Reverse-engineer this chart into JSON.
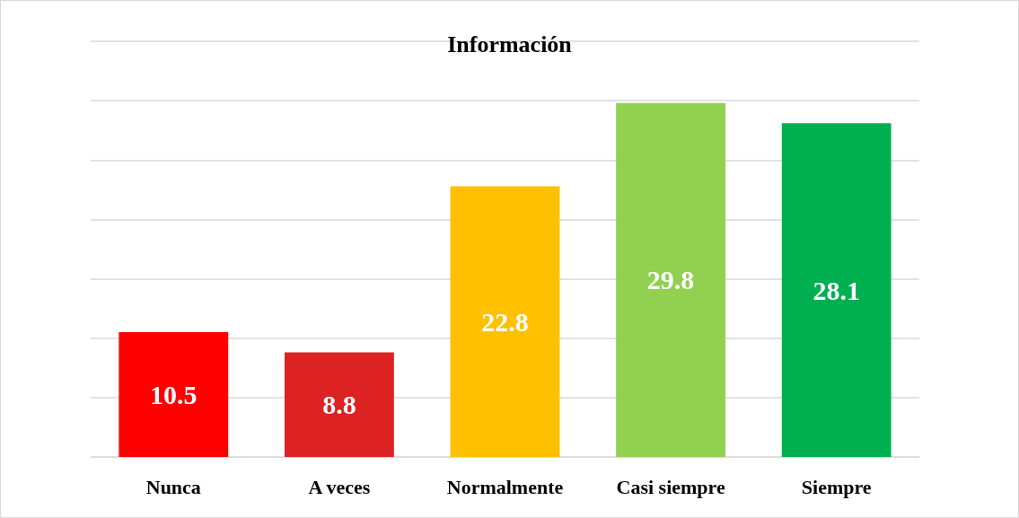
{
  "chart_data": {
    "type": "bar",
    "title": "Información",
    "categories": [
      "Nunca",
      "A veces",
      "Normalmente",
      "Casi siempre",
      "Siempre"
    ],
    "values": [
      10.5,
      8.8,
      22.8,
      29.8,
      28.1
    ],
    "colors": [
      "#ff0000",
      "#dc2222",
      "#ffc000",
      "#92d050",
      "#00b050"
    ],
    "ylim": [
      0,
      35
    ],
    "yticks": [
      {
        "value": 0,
        "label": null
      },
      {
        "value": 5,
        "label": null
      },
      {
        "value": 10,
        "label": null
      },
      {
        "value": 15,
        "label": null
      },
      {
        "value": 20,
        "label": null
      },
      {
        "value": 25,
        "label": null
      },
      {
        "value": 30,
        "label": null
      },
      {
        "value": 35,
        "label": null
      }
    ],
    "grid": "y",
    "data_labels": true,
    "tick_labels": "x"
  }
}
